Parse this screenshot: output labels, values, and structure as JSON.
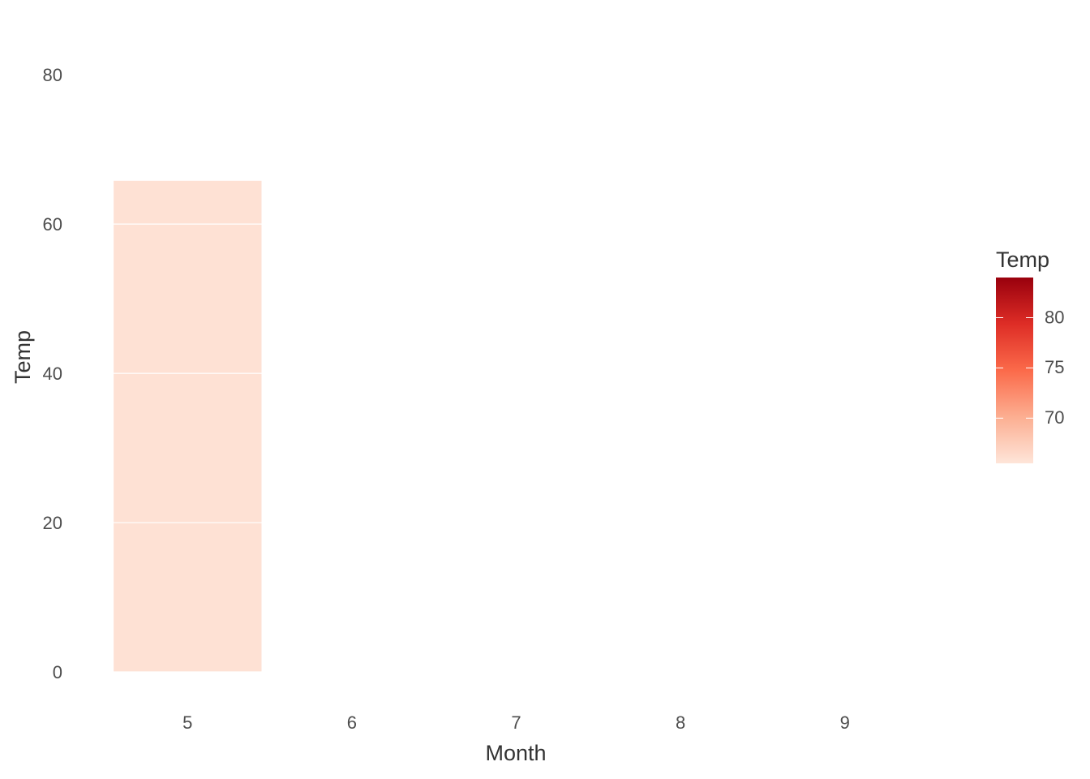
{
  "chart_data": {
    "type": "bar",
    "x_label": "Month",
    "y_label": "Temp",
    "categories": [
      "5",
      "6",
      "7",
      "8",
      "9"
    ],
    "values": [
      65.8,
      null,
      null,
      null,
      null
    ],
    "ylim": [
      0,
      86
    ],
    "yticks": [
      0,
      20,
      40,
      60,
      80
    ],
    "grid": true,
    "legend": {
      "title": "Temp",
      "range": [
        65.5,
        84
      ],
      "ticks": [
        70,
        75,
        80
      ],
      "colors": [
        "#fee5d9",
        "#fcae91",
        "#fb6a4a",
        "#de2d26",
        "#99000d"
      ]
    }
  }
}
